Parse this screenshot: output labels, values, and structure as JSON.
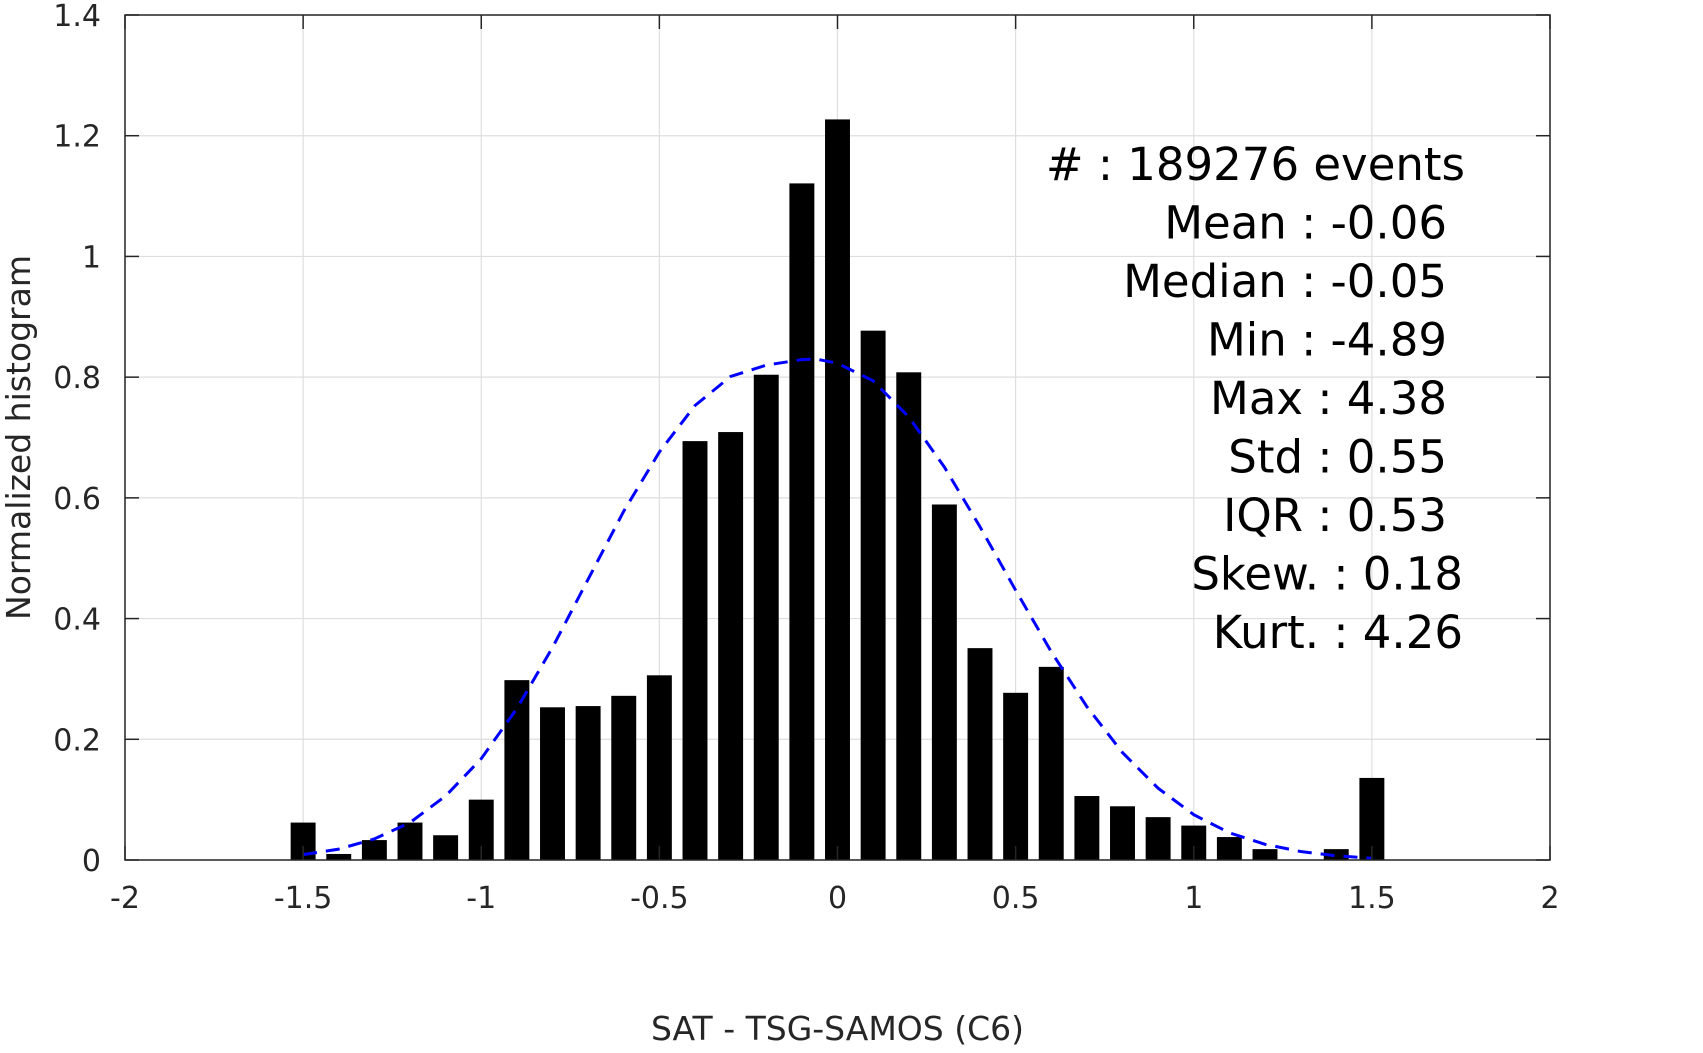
{
  "chart_data": {
    "type": "bar",
    "xlabel": "SAT - TSG-SAMOS (C6)",
    "ylabel": "Normalized histogram",
    "xlim": [
      -2,
      2
    ],
    "ylim": [
      0,
      1.4
    ],
    "xticks": [
      -2,
      -1.5,
      -1,
      -0.5,
      0,
      0.5,
      1,
      1.5,
      2
    ],
    "xtick_labels": [
      "-2",
      "-1.5",
      "-1",
      "-0.5",
      "0",
      "0.5",
      "1",
      "1.5",
      "2"
    ],
    "yticks": [
      0,
      0.2,
      0.4,
      0.6,
      0.8,
      1,
      1.2,
      1.4
    ],
    "ytick_labels": [
      "0",
      "0.2",
      "0.4",
      "0.6",
      "0.8",
      "1",
      "1.2",
      "1.4"
    ],
    "grid": true,
    "bar_width": 0.07,
    "bins": [
      {
        "x": -1.5,
        "value": 0.062
      },
      {
        "x": -1.4,
        "value": 0.01
      },
      {
        "x": -1.3,
        "value": 0.033
      },
      {
        "x": -1.2,
        "value": 0.062
      },
      {
        "x": -1.1,
        "value": 0.041
      },
      {
        "x": -1.0,
        "value": 0.1
      },
      {
        "x": -0.9,
        "value": 0.298
      },
      {
        "x": -0.8,
        "value": 0.253
      },
      {
        "x": -0.7,
        "value": 0.255
      },
      {
        "x": -0.6,
        "value": 0.272
      },
      {
        "x": -0.5,
        "value": 0.306
      },
      {
        "x": -0.4,
        "value": 0.694
      },
      {
        "x": -0.3,
        "value": 0.709
      },
      {
        "x": -0.2,
        "value": 0.804
      },
      {
        "x": -0.1,
        "value": 1.121
      },
      {
        "x": 0.0,
        "value": 1.227
      },
      {
        "x": 0.1,
        "value": 0.877
      },
      {
        "x": 0.2,
        "value": 0.808
      },
      {
        "x": 0.3,
        "value": 0.589
      },
      {
        "x": 0.4,
        "value": 0.351
      },
      {
        "x": 0.5,
        "value": 0.277
      },
      {
        "x": 0.6,
        "value": 0.32
      },
      {
        "x": 0.7,
        "value": 0.106
      },
      {
        "x": 0.8,
        "value": 0.089
      },
      {
        "x": 0.9,
        "value": 0.071
      },
      {
        "x": 1.0,
        "value": 0.057
      },
      {
        "x": 1.1,
        "value": 0.038
      },
      {
        "x": 1.2,
        "value": 0.018
      },
      {
        "x": 1.3,
        "value": 0.0
      },
      {
        "x": 1.4,
        "value": 0.018
      },
      {
        "x": 1.5,
        "value": 0.136
      }
    ],
    "fit_curve": {
      "style": "dashed",
      "color": "#0000ff",
      "points": [
        [
          -1.5,
          0.009
        ],
        [
          -1.4,
          0.018
        ],
        [
          -1.3,
          0.035
        ],
        [
          -1.2,
          0.062
        ],
        [
          -1.1,
          0.106
        ],
        [
          -1.0,
          0.168
        ],
        [
          -0.9,
          0.251
        ],
        [
          -0.8,
          0.352
        ],
        [
          -0.7,
          0.465
        ],
        [
          -0.6,
          0.578
        ],
        [
          -0.5,
          0.676
        ],
        [
          -0.4,
          0.753
        ],
        [
          -0.3,
          0.801
        ],
        [
          -0.2,
          0.82
        ],
        [
          -0.1,
          0.829
        ],
        [
          -0.06,
          0.83
        ],
        [
          0.0,
          0.823
        ],
        [
          0.1,
          0.794
        ],
        [
          0.2,
          0.734
        ],
        [
          0.3,
          0.651
        ],
        [
          0.4,
          0.552
        ],
        [
          0.5,
          0.447
        ],
        [
          0.6,
          0.345
        ],
        [
          0.7,
          0.254
        ],
        [
          0.8,
          0.178
        ],
        [
          0.9,
          0.119
        ],
        [
          1.0,
          0.075
        ],
        [
          1.1,
          0.045
        ],
        [
          1.2,
          0.026
        ],
        [
          1.3,
          0.014
        ],
        [
          1.4,
          0.007
        ],
        [
          1.5,
          0.003
        ]
      ]
    },
    "bar_color": "#000000",
    "annotations": [
      "#  : 189276 events",
      "Mean : -0.06",
      "Median : -0.05",
      "Min : -4.89",
      "Max : 4.38",
      "Std : 0.55",
      "IQR : 0.53",
      "Skew. : 0.18",
      "Kurt. : 4.26"
    ]
  }
}
